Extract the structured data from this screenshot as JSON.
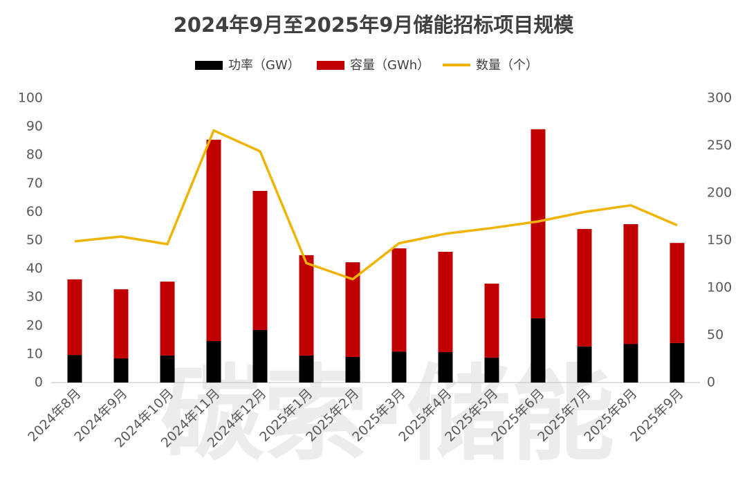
{
  "chart_data": {
    "type": "bar",
    "stacked": true,
    "title": "2024年9月至2025年9月储能招标项目规模",
    "watermark": "碳索·储能",
    "categories": [
      "2024年8月",
      "2024年9月",
      "2024年10月",
      "2024年11月",
      "2024年12月",
      "2025年1月",
      "2025年2月",
      "2025年3月",
      "2025年4月",
      "2025年5月",
      "2025年6月",
      "2025年7月",
      "2025年8月",
      "2025年9月"
    ],
    "series": [
      {
        "name": "功率（GW）",
        "type": "bar",
        "color": "#000000",
        "values": [
          9.7,
          8.5,
          9.5,
          14.6,
          18.5,
          9.5,
          9.0,
          10.9,
          10.7,
          8.8,
          22.6,
          12.7,
          13.6,
          13.9
        ]
      },
      {
        "name": "容量（GWh）",
        "type": "bar",
        "color": "#c00000",
        "values": [
          26.6,
          24.3,
          26.0,
          70.8,
          48.9,
          35.3,
          33.3,
          36.3,
          35.3,
          26.0,
          66.5,
          41.3,
          42.1,
          35.2
        ]
      },
      {
        "name": "数量（个）",
        "type": "line",
        "axis": "y2",
        "color": "#f0b400",
        "values": [
          149,
          154,
          146,
          266,
          244,
          126,
          109,
          147,
          157,
          163,
          170,
          180,
          187,
          166
        ]
      }
    ],
    "ylim": [
      0,
      100
    ],
    "yticks": [
      0,
      10,
      20,
      30,
      40,
      50,
      60,
      70,
      80,
      90,
      100
    ],
    "y2lim": [
      0,
      300
    ],
    "y2ticks": [
      0,
      50,
      100,
      150,
      200,
      250,
      300
    ],
    "grid": false
  }
}
